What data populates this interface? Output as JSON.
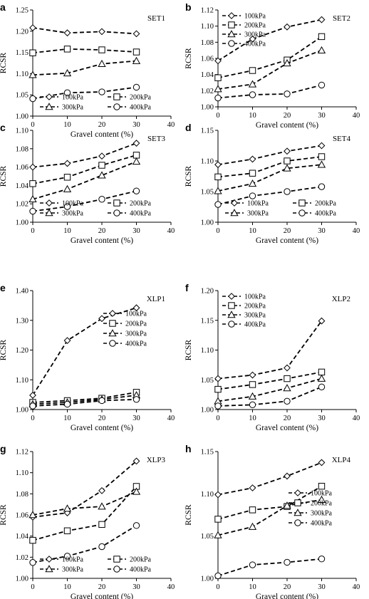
{
  "chart_data": [
    {
      "panel": "a",
      "label": "SET1",
      "type": "line",
      "xlabel": "Gravel content (%)",
      "ylabel": "RCSR",
      "xlim": [
        0,
        40
      ],
      "xticks": [
        0,
        10,
        20,
        30,
        40
      ],
      "ylim": [
        1.0,
        1.25
      ],
      "yticks": [
        "1.00",
        "1.05",
        "1.10",
        "1.15",
        "1.20",
        "1.25"
      ],
      "x": [
        0,
        10,
        20,
        30
      ],
      "legend_layout": "grid-bottom-2col",
      "series": [
        {
          "name": "100kPa",
          "marker": "diamond",
          "values": [
            1.208,
            1.196,
            1.199,
            1.194
          ]
        },
        {
          "name": "200kPa",
          "marker": "square",
          "values": [
            1.149,
            1.158,
            1.156,
            1.151
          ]
        },
        {
          "name": "300kPa",
          "marker": "triangle",
          "values": [
            1.097,
            1.101,
            1.123,
            1.13
          ]
        },
        {
          "name": "400kPa",
          "marker": "circle",
          "values": [
            1.041,
            1.055,
            1.057,
            1.068
          ]
        }
      ]
    },
    {
      "panel": "b",
      "label": "SET2",
      "type": "line",
      "xlabel": "Gravel content (%)",
      "ylabel": "RCSR",
      "xlim": [
        0,
        40
      ],
      "xticks": [
        0,
        10,
        20,
        30,
        40
      ],
      "ylim": [
        1.0,
        1.12
      ],
      "yticks": [
        "1.00",
        "1.02",
        "1.04",
        "1.06",
        "1.08",
        "1.10",
        "1.12"
      ],
      "x": [
        0,
        10,
        20,
        30
      ],
      "legend_layout": "list-top-left",
      "series": [
        {
          "name": "100kPa",
          "marker": "diamond",
          "values": [
            1.057,
            1.084,
            1.099,
            1.108
          ]
        },
        {
          "name": "200kPa",
          "marker": "square",
          "values": [
            1.036,
            1.045,
            1.058,
            1.087
          ]
        },
        {
          "name": "300kPa",
          "marker": "triangle",
          "values": [
            1.022,
            1.028,
            1.054,
            1.07
          ]
        },
        {
          "name": "400kPa",
          "marker": "circle",
          "values": [
            1.011,
            1.015,
            1.016,
            1.027
          ]
        }
      ]
    },
    {
      "panel": "c",
      "label": "SET3",
      "type": "line",
      "xlabel": "Gravel content (%)",
      "ylabel": "RCSR",
      "xlim": [
        0,
        40
      ],
      "xticks": [
        0,
        10,
        20,
        30,
        40
      ],
      "ylim": [
        1.0,
        1.1
      ],
      "yticks": [
        "1.00",
        "1.02",
        "1.04",
        "1.06",
        "1.08",
        "1.10"
      ],
      "x": [
        0,
        10,
        20,
        30
      ],
      "legend_layout": "grid-bottom-2col",
      "series": [
        {
          "name": "100kPa",
          "marker": "diamond",
          "values": [
            1.06,
            1.064,
            1.072,
            1.086
          ]
        },
        {
          "name": "200kPa",
          "marker": "square",
          "values": [
            1.042,
            1.049,
            1.062,
            1.073
          ]
        },
        {
          "name": "300kPa",
          "marker": "triangle",
          "values": [
            1.025,
            1.036,
            1.051,
            1.066
          ]
        },
        {
          "name": "400kPa",
          "marker": "circle",
          "values": [
            1.012,
            1.017,
            1.025,
            1.034
          ]
        }
      ]
    },
    {
      "panel": "d",
      "label": "SET4",
      "type": "line",
      "xlabel": "Gravel content (%)",
      "ylabel": "RCSR",
      "xlim": [
        0,
        40
      ],
      "xticks": [
        0,
        10,
        20,
        30,
        40
      ],
      "ylim": [
        1.0,
        1.15
      ],
      "yticks": [
        "1.00",
        "1.05",
        "1.10",
        "1.15"
      ],
      "x": [
        0,
        10,
        20,
        30
      ],
      "legend_layout": "grid-bottom-2col",
      "series": [
        {
          "name": "100kPa",
          "marker": "diamond",
          "values": [
            1.094,
            1.103,
            1.116,
            1.125
          ]
        },
        {
          "name": "200kPa",
          "marker": "square",
          "values": [
            1.074,
            1.08,
            1.1,
            1.107
          ]
        },
        {
          "name": "300kPa",
          "marker": "triangle",
          "values": [
            1.051,
            1.063,
            1.088,
            1.094
          ]
        },
        {
          "name": "400kPa",
          "marker": "circle",
          "values": [
            1.029,
            1.043,
            1.05,
            1.058
          ]
        }
      ]
    },
    {
      "panel": "e",
      "label": "XLP1",
      "type": "line",
      "xlabel": "Gravel content (%)",
      "ylabel": "RCSR",
      "xlim": [
        0,
        40
      ],
      "xticks": [
        0,
        10,
        20,
        30,
        40
      ],
      "ylim": [
        1.0,
        1.4
      ],
      "yticks": [
        "1.00",
        "1.10",
        "1.20",
        "1.30",
        "1.40"
      ],
      "x": [
        0,
        10,
        20,
        30
      ],
      "legend_layout": "list-right",
      "series": [
        {
          "name": "100kPa",
          "marker": "diamond",
          "values": [
            1.048,
            1.232,
            1.306,
            1.342
          ]
        },
        {
          "name": "200kPa",
          "marker": "square",
          "values": [
            1.024,
            1.03,
            1.038,
            1.058
          ]
        },
        {
          "name": "300kPa",
          "marker": "triangle",
          "values": [
            1.018,
            1.024,
            1.034,
            1.048
          ]
        },
        {
          "name": "400kPa",
          "marker": "circle",
          "values": [
            1.012,
            1.018,
            1.03,
            1.034
          ]
        }
      ]
    },
    {
      "panel": "f",
      "label": "XLP2",
      "type": "line",
      "xlabel": "Gravel content (%)",
      "ylabel": "RCSR",
      "xlim": [
        0,
        40
      ],
      "xticks": [
        0,
        10,
        20,
        30,
        40
      ],
      "ylim": [
        1.0,
        1.2
      ],
      "yticks": [
        "1.00",
        "1.05",
        "1.10",
        "1.15",
        "1.20"
      ],
      "x": [
        0,
        10,
        20,
        30
      ],
      "legend_layout": "list-top-left",
      "series": [
        {
          "name": "100kPa",
          "marker": "diamond",
          "values": [
            1.052,
            1.058,
            1.07,
            1.149
          ]
        },
        {
          "name": "200kPa",
          "marker": "square",
          "values": [
            1.034,
            1.042,
            1.052,
            1.063
          ]
        },
        {
          "name": "300kPa",
          "marker": "triangle",
          "values": [
            1.014,
            1.022,
            1.036,
            1.052
          ]
        },
        {
          "name": "400kPa",
          "marker": "circle",
          "values": [
            1.006,
            1.008,
            1.014,
            1.038
          ]
        }
      ]
    },
    {
      "panel": "g",
      "label": "XLP3",
      "type": "line",
      "xlabel": "Gravel content (%)",
      "ylabel": "RCSR",
      "xlim": [
        0,
        40
      ],
      "xticks": [
        0,
        10,
        20,
        30,
        40
      ],
      "ylim": [
        1.0,
        1.12
      ],
      "yticks": [
        "1.00",
        "1.02",
        "1.04",
        "1.06",
        "1.08",
        "1.10",
        "1.12"
      ],
      "x": [
        0,
        10,
        20,
        30
      ],
      "legend_layout": "grid-bottom-2col",
      "series": [
        {
          "name": "100kPa",
          "marker": "diamond",
          "values": [
            1.058,
            1.062,
            1.083,
            1.111
          ]
        },
        {
          "name": "200kPa",
          "marker": "square",
          "values": [
            1.036,
            1.045,
            1.051,
            1.087
          ]
        },
        {
          "name": "300kPa",
          "marker": "triangle",
          "values": [
            1.06,
            1.066,
            1.068,
            1.082
          ]
        },
        {
          "name": "400kPa",
          "marker": "circle",
          "values": [
            1.015,
            1.021,
            1.03,
            1.05
          ]
        }
      ]
    },
    {
      "panel": "h",
      "label": "XLP4",
      "type": "line",
      "xlabel": "Gravel content (%)",
      "ylabel": "RCSR",
      "xlim": [
        0,
        40
      ],
      "xticks": [
        0,
        10,
        20,
        30,
        40
      ],
      "ylim": [
        1.0,
        1.15
      ],
      "yticks": [
        "1.00",
        "1.05",
        "1.10",
        "1.15"
      ],
      "x": [
        0,
        10,
        20,
        30
      ],
      "legend_layout": "list-right",
      "series": [
        {
          "name": "100kPa",
          "marker": "diamond",
          "values": [
            1.099,
            1.107,
            1.121,
            1.137
          ]
        },
        {
          "name": "200kPa",
          "marker": "square",
          "values": [
            1.07,
            1.081,
            1.085,
            1.109
          ]
        },
        {
          "name": "300kPa",
          "marker": "triangle",
          "values": [
            1.051,
            1.061,
            1.086,
            1.093
          ]
        },
        {
          "name": "400kPa",
          "marker": "circle",
          "values": [
            1.003,
            1.016,
            1.019,
            1.023
          ]
        }
      ]
    }
  ]
}
